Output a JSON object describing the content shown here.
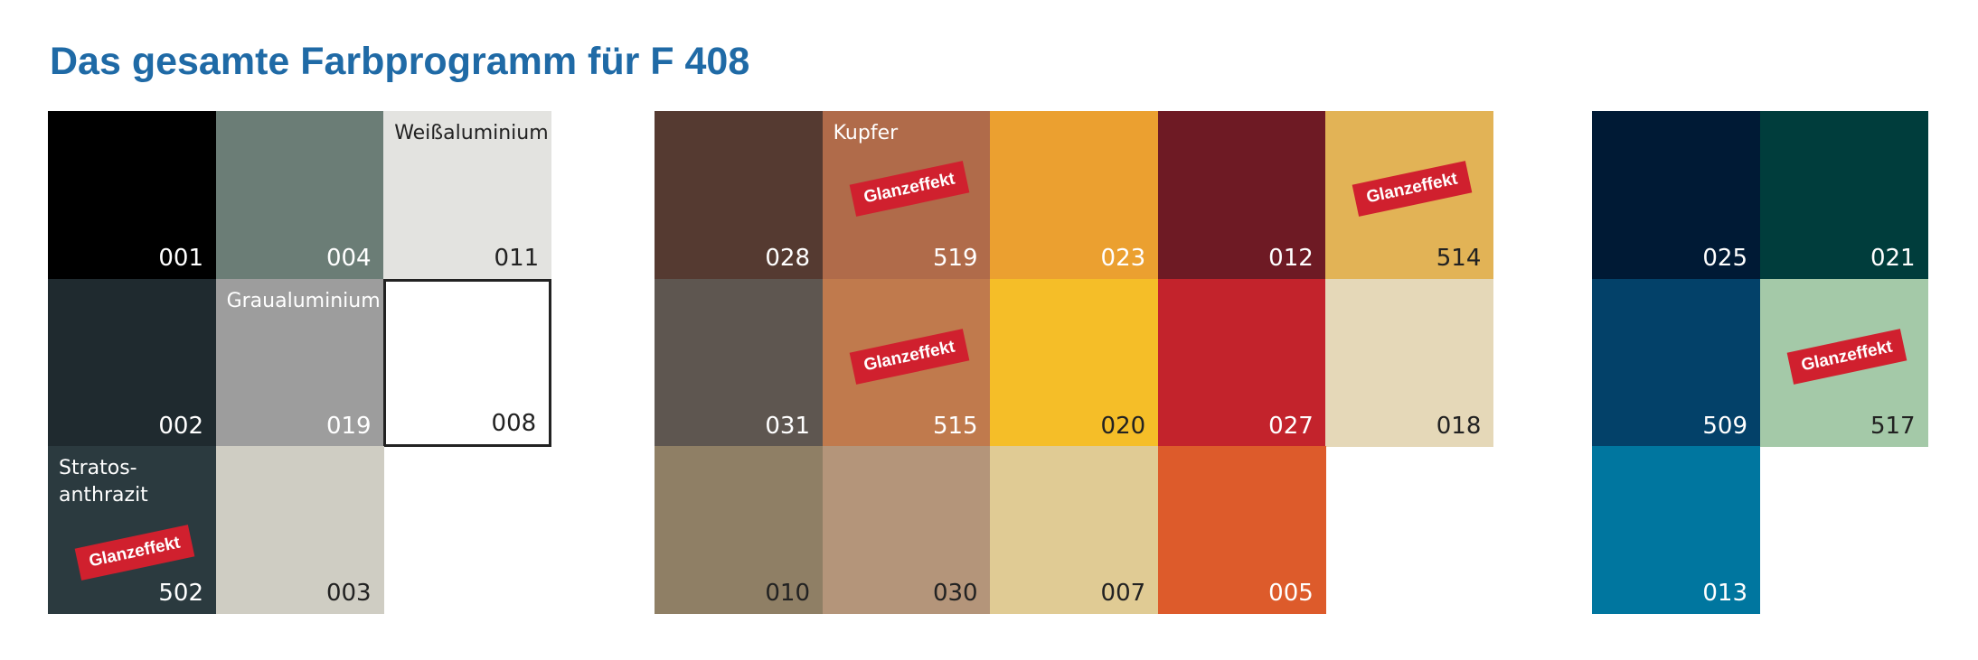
{
  "title": "Das gesamte Farbprogramm für F 408",
  "groups": [
    {
      "rows": [
        [
          {
            "code": "001",
            "color": "#000000",
            "text_color": "#ffffff"
          },
          {
            "code": "004",
            "color": "#6b7d76",
            "text_color": "#ffffff"
          },
          {
            "code": "011",
            "color": "#e3e3e0",
            "text_color": "#222222",
            "name": "Weißaluminium"
          }
        ],
        [
          {
            "code": "002",
            "color": "#1f2a2f",
            "text_color": "#ffffff"
          },
          {
            "code": "019",
            "color": "#9d9d9d",
            "text_color": "#ffffff",
            "name": "Graualuminium"
          },
          {
            "code": "008",
            "color": "#ffffff",
            "text_color": "#222222",
            "border": "#222222"
          }
        ],
        [
          {
            "code": "502",
            "color": "#2b3a3f",
            "text_color": "#ffffff",
            "name": "Stratos-\nanthrazit",
            "badge": "Glanzeffekt"
          },
          {
            "code": "003",
            "color": "#cfcdc3",
            "text_color": "#222222"
          },
          null
        ]
      ]
    },
    {
      "rows": [
        [
          {
            "code": "028",
            "color": "#553a31",
            "text_color": "#ffffff"
          },
          {
            "code": "519",
            "color": "#b06b4a",
            "text_color": "#ffffff",
            "name": "Kupfer",
            "badge": "Glanzeffekt"
          },
          {
            "code": "023",
            "color": "#eba030",
            "text_color": "#ffffff"
          },
          {
            "code": "012",
            "color": "#6e1a24",
            "text_color": "#ffffff"
          },
          {
            "code": "514",
            "color": "#e2b356",
            "text_color": "#222222",
            "badge": "Glanzeffekt"
          }
        ],
        [
          {
            "code": "031",
            "color": "#5e5650",
            "text_color": "#ffffff"
          },
          {
            "code": "515",
            "color": "#c07a4d",
            "text_color": "#ffffff",
            "badge": "Glanzeffekt"
          },
          {
            "code": "020",
            "color": "#f5be28",
            "text_color": "#222222"
          },
          {
            "code": "027",
            "color": "#c3232c",
            "text_color": "#ffffff"
          },
          {
            "code": "018",
            "color": "#e5d8b8",
            "text_color": "#222222"
          }
        ],
        [
          {
            "code": "010",
            "color": "#8f7f65",
            "text_color": "#222222"
          },
          {
            "code": "030",
            "color": "#b4957a",
            "text_color": "#222222"
          },
          {
            "code": "007",
            "color": "#e0cb94",
            "text_color": "#222222"
          },
          {
            "code": "005",
            "color": "#dd5b2b",
            "text_color": "#ffffff"
          },
          null
        ]
      ]
    },
    {
      "rows": [
        [
          {
            "code": "025",
            "color": "#001a35",
            "text_color": "#ffffff"
          },
          {
            "code": "021",
            "color": "#003d3c",
            "text_color": "#ffffff"
          }
        ],
        [
          {
            "code": "509",
            "color": "#034169",
            "text_color": "#ffffff"
          },
          {
            "code": "517",
            "color": "#a4c9a8",
            "text_color": "#222222",
            "badge": "Glanzeffekt"
          }
        ],
        [
          {
            "code": "013",
            "color": "#00769f",
            "text_color": "#ffffff"
          },
          null
        ]
      ]
    }
  ]
}
